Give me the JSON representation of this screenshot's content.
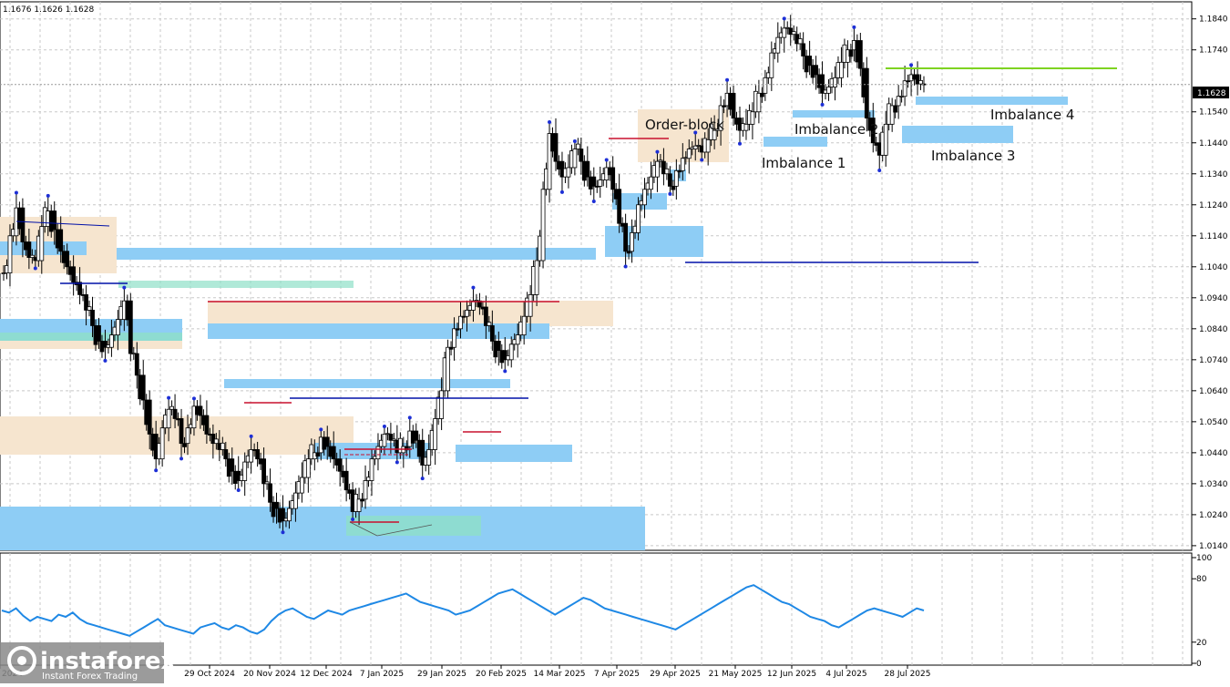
{
  "header": {
    "ohlc_text": "1.1676 1.1626 1.1628"
  },
  "chart_data": {
    "type": "candlestick",
    "title": "",
    "current_price": "1.1628",
    "y_ticks": [
      "1.1840",
      "1.1740",
      "1.1540",
      "1.1440",
      "1.1340",
      "1.1240",
      "1.1140",
      "1.1040",
      "1.0940",
      "1.0840",
      "1.0740",
      "1.0640",
      "1.0540",
      "1.0440",
      "1.0340",
      "1.0240",
      "1.0140"
    ],
    "ylim": [
      1.0125,
      1.1895
    ],
    "x_ticks": [
      "7 Oct 2024",
      "29 Oct 2024",
      "20 Nov 2024",
      "12 Dec 2024",
      "7 Jan 2025",
      "29 Jan 2025",
      "20 Feb 2025",
      "14 Mar 2025",
      "7 Apr 2025",
      "29 Apr 2025",
      "21 May 2025",
      "12 Jun 2025",
      "4 Jul 2025",
      "28 Jul 2025"
    ],
    "grid": true,
    "price_path": [
      [
        1.102,
        1.114,
        1.123,
        1.112,
        1.107,
        1.106,
        1.117,
        1.122,
        1.116,
        1.109,
        1.104,
        1.099,
        1.095,
        1.09,
        1.085,
        1.08,
        1.078,
        1.082,
        1.087,
        1.093,
        1.076,
        1.069,
        1.061,
        1.05,
        1.042,
        1.052,
        1.058,
        1.055,
        1.047,
        1.052,
        1.059,
        1.056,
        1.05,
        1.047,
        1.045,
        1.042,
        1.038,
        1.035,
        1.041,
        1.045,
        1.042,
        1.034,
        1.028,
        1.026,
        1.022,
        1.026,
        1.031,
        1.036,
        1.042,
        1.044,
        1.049,
        1.046,
        1.042,
        1.038,
        1.032,
        1.025,
        1.029,
        1.035,
        1.042,
        1.046,
        1.05,
        1.048,
        1.044,
        1.046,
        1.051,
        1.048,
        1.04,
        1.045,
        1.055,
        1.064,
        1.078,
        1.084,
        1.088,
        1.09,
        1.093,
        1.091,
        1.085,
        1.08,
        1.077,
        1.074,
        1.079,
        1.082,
        1.088,
        1.095,
        1.106,
        1.129,
        1.147,
        1.138,
        1.133,
        1.136,
        1.142,
        1.138,
        1.133,
        1.13,
        1.132,
        1.136,
        1.129,
        1.118,
        1.109,
        1.115,
        1.124,
        1.129,
        1.133,
        1.138,
        1.134,
        1.13,
        1.135,
        1.139,
        1.142,
        1.143,
        1.141,
        1.145,
        1.148,
        1.156,
        1.16,
        1.152,
        1.148,
        1.15,
        1.154,
        1.16,
        1.165,
        1.173,
        1.178,
        1.181,
        1.179,
        1.176,
        1.172,
        1.169,
        1.166,
        1.16,
        1.162,
        1.165,
        1.17,
        1.174,
        1.177,
        1.168,
        1.152,
        1.144,
        1.14,
        1.15,
        1.156,
        1.159,
        1.164,
        1.166,
        1.163,
        1.1628
      ]
    ],
    "zones": {
      "imbalance_label_1": "Imbalance 1",
      "imbalance_label_2": "Imbalance 2",
      "imbalance_label_3": "Imbalance 3",
      "imbalance_label_4": "Imbalance 4",
      "order_block_label": "Order-block"
    },
    "indicator": {
      "y_ticks": [
        "100",
        "80",
        "20",
        "0"
      ],
      "ylim": [
        0,
        100
      ],
      "values": [
        50,
        48,
        52,
        45,
        40,
        44,
        42,
        40,
        46,
        44,
        48,
        42,
        38,
        36,
        34,
        32,
        30,
        28,
        26,
        30,
        34,
        38,
        42,
        36,
        34,
        32,
        30,
        28,
        34,
        36,
        38,
        34,
        32,
        36,
        34,
        30,
        28,
        32,
        40,
        46,
        50,
        52,
        48,
        44,
        42,
        46,
        50,
        48,
        46,
        50,
        52,
        54,
        56,
        58,
        60,
        62,
        64,
        66,
        62,
        58,
        56,
        54,
        52,
        50,
        46,
        48,
        50,
        54,
        58,
        62,
        66,
        68,
        70,
        66,
        62,
        58,
        54,
        50,
        46,
        50,
        54,
        58,
        62,
        60,
        56,
        52,
        50,
        48,
        46,
        44,
        42,
        40,
        38,
        36,
        34,
        32,
        36,
        40,
        44,
        48,
        52,
        56,
        60,
        64,
        68,
        72,
        74,
        70,
        66,
        62,
        58,
        56,
        52,
        48,
        44,
        42,
        40,
        36,
        34,
        38,
        42,
        46,
        50,
        52,
        50,
        48,
        46,
        44,
        48,
        52,
        50
      ]
    }
  },
  "branding": {
    "logo_text": "instaforex",
    "tagline": "Instant Forex Trading"
  },
  "colors": {
    "imbalance": "#8ecdf5",
    "imbalance_green": "#8fe0c8",
    "order_block": "#f6e5cf",
    "candle": "#000000",
    "pivot_dot": "#1d2fd6",
    "red_line": "#c8102e",
    "blue_line": "#0010a8",
    "green_line": "#7ed321",
    "indicator_line": "#1e88e5",
    "grid": "#c8c8c8",
    "watermark_bg": "#8a8a8a"
  }
}
